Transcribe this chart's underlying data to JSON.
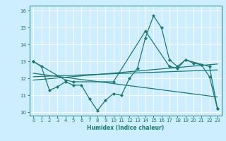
{
  "xlabel": "Humidex (Indice chaleur)",
  "bg_color": "#cceeff",
  "grid_color": "#ffffff",
  "line_color": "#1a7a6e",
  "xlim": [
    -0.5,
    23.5
  ],
  "ylim": [
    9.8,
    16.3
  ],
  "yticks": [
    10,
    11,
    12,
    13,
    14,
    15,
    16
  ],
  "xticks": [
    0,
    1,
    2,
    3,
    4,
    5,
    6,
    7,
    8,
    9,
    10,
    11,
    12,
    13,
    14,
    15,
    16,
    17,
    18,
    19,
    20,
    21,
    22,
    23
  ],
  "series": [
    {
      "x": [
        0,
        1,
        2,
        3,
        4,
        5,
        6,
        7,
        8,
        9,
        10,
        11,
        12,
        13,
        14,
        15,
        16,
        17,
        18,
        19,
        20,
        21,
        22,
        23
      ],
      "y": [
        13.0,
        12.7,
        11.3,
        11.5,
        11.8,
        11.6,
        11.6,
        10.8,
        10.1,
        10.7,
        11.1,
        11.0,
        12.0,
        12.6,
        14.4,
        15.7,
        15.0,
        13.1,
        12.7,
        13.1,
        12.9,
        12.8,
        12.1,
        10.2
      ],
      "marker": true
    },
    {
      "x": [
        0,
        4,
        5,
        10,
        14,
        17,
        18,
        19,
        22,
        23
      ],
      "y": [
        13.0,
        11.9,
        11.8,
        11.8,
        14.8,
        12.7,
        12.6,
        13.1,
        12.7,
        10.2
      ],
      "marker": true
    },
    {
      "x": [
        0,
        23
      ],
      "y": [
        12.1,
        12.5
      ],
      "marker": false
    },
    {
      "x": [
        0,
        23
      ],
      "y": [
        12.3,
        10.9
      ],
      "marker": false
    },
    {
      "x": [
        0,
        23
      ],
      "y": [
        11.9,
        12.85
      ],
      "marker": false
    }
  ]
}
